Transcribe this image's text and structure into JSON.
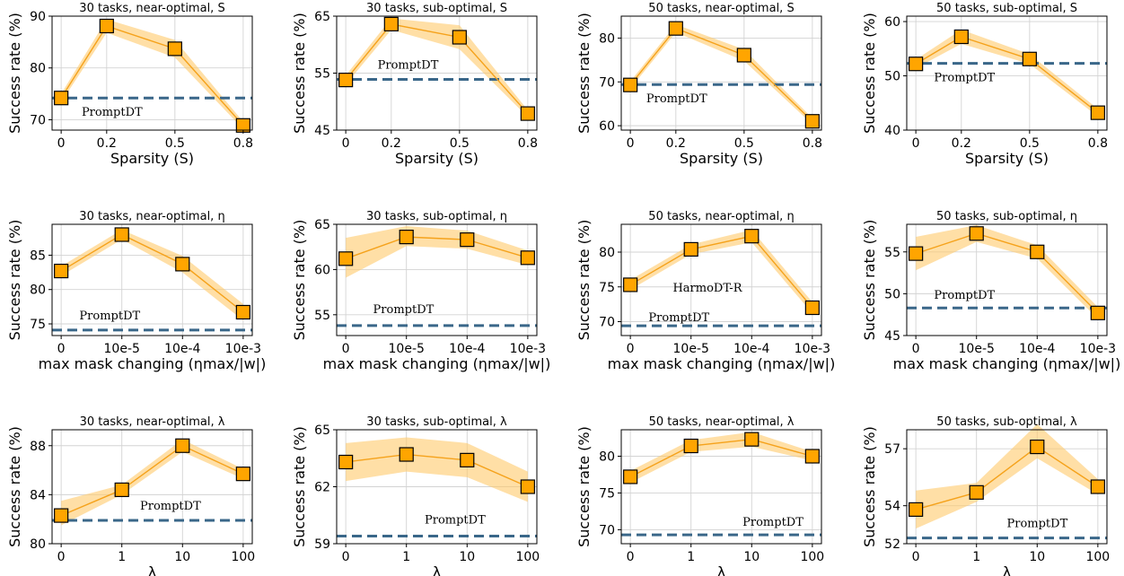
{
  "colors": {
    "marker": "#ffa500",
    "line": "#f5a21b",
    "band": "#ffc96b",
    "baseline": "#3a6789",
    "grid": "#d3d3d3"
  },
  "chart_data": [
    {
      "type": "line",
      "title": "30 tasks, near-optimal, S",
      "xlabel": "Sparsity (S)",
      "ylabel": "Success rate (%)",
      "categories": [
        "0",
        "0.2",
        "0.5",
        "0.8"
      ],
      "x": [
        0,
        0.2,
        0.5,
        0.8
      ],
      "xlim": [
        -0.04,
        0.84
      ],
      "values": [
        74.2,
        88.1,
        83.7,
        68.9
      ],
      "lower": [
        73.4,
        86.8,
        82.0,
        68.2
      ],
      "upper": [
        75.0,
        89.4,
        85.4,
        69.6
      ],
      "yticks": [
        70,
        80,
        90
      ],
      "ylim": [
        68,
        90
      ],
      "baseline": {
        "label": "PromptDT",
        "value": 74.2
      }
    },
    {
      "type": "line",
      "title": "30 tasks, sub-optimal, S",
      "xlabel": "Sparsity (S)",
      "ylabel": "Success rate (%)",
      "categories": [
        "0",
        "0.2",
        "0.5",
        "0.8"
      ],
      "x": [
        0,
        0.2,
        0.5,
        0.8
      ],
      "xlim": [
        -0.04,
        0.84
      ],
      "values": [
        53.8,
        63.6,
        61.3,
        47.9
      ],
      "lower": [
        53.0,
        62.6,
        59.2,
        47.3
      ],
      "upper": [
        54.6,
        64.6,
        63.4,
        48.5
      ],
      "yticks": [
        45,
        55,
        65
      ],
      "ylim": [
        45,
        65
      ],
      "baseline": {
        "label": "PromptDT",
        "value": 53.9
      }
    },
    {
      "type": "line",
      "title": "50 tasks, near-optimal, S",
      "xlabel": "Sparsity (S)",
      "ylabel": "Success rate (%)",
      "categories": [
        "0",
        "0.2",
        "0.5",
        "0.8"
      ],
      "x": [
        0,
        0.2,
        0.5,
        0.8
      ],
      "xlim": [
        -0.04,
        0.84
      ],
      "values": [
        69.3,
        82.2,
        76.1,
        61.0
      ],
      "lower": [
        68.5,
        81.3,
        74.8,
        60.3
      ],
      "upper": [
        70.1,
        83.1,
        77.4,
        61.7
      ],
      "yticks": [
        60,
        70,
        80
      ],
      "ylim": [
        59,
        85
      ],
      "baseline": {
        "label": "PromptDT",
        "value": 69.4
      }
    },
    {
      "type": "line",
      "title": "50 tasks, sub-optimal, S",
      "xlabel": "Sparsity (S)",
      "ylabel": "Success rate (%)",
      "categories": [
        "0",
        "0.2",
        "0.5",
        "0.8"
      ],
      "x": [
        0,
        0.2,
        0.5,
        0.8
      ],
      "xlim": [
        -0.04,
        0.84
      ],
      "values": [
        52.2,
        57.2,
        53.1,
        43.2
      ],
      "lower": [
        51.4,
        55.9,
        52.2,
        42.5
      ],
      "upper": [
        53.0,
        58.5,
        54.0,
        43.9
      ],
      "yticks": [
        40,
        50,
        60
      ],
      "ylim": [
        40,
        61
      ],
      "baseline": {
        "label": "PromptDT",
        "value": 52.3
      }
    },
    {
      "type": "line",
      "title": "30 tasks, near-optimal, η",
      "xlabel": "max mask changing (ηmax/|w|)",
      "ylabel": "Success rate (%)",
      "categories": [
        "0",
        "10e-5",
        "10e-4",
        "10e-3"
      ],
      "x": [
        0,
        1,
        2,
        3
      ],
      "xlim": [
        -0.15,
        3.15
      ],
      "values": [
        82.7,
        88.0,
        83.7,
        76.7
      ],
      "lower": [
        82.0,
        87.3,
        82.5,
        75.5
      ],
      "upper": [
        83.4,
        88.7,
        84.9,
        77.9
      ],
      "yticks": [
        75,
        80,
        85
      ],
      "ylim": [
        73.3,
        89.5
      ],
      "baseline": {
        "label": "PromptDT",
        "value": 74.1
      }
    },
    {
      "type": "line",
      "title": "30 tasks, sub-optimal, η",
      "xlabel": "max mask changing (ηmax/|w|)",
      "ylabel": "Success rate (%)",
      "categories": [
        "0",
        "10e-5",
        "10e-4",
        "10e-3"
      ],
      "x": [
        0,
        1,
        2,
        3
      ],
      "xlim": [
        -0.15,
        3.15
      ],
      "values": [
        61.2,
        63.6,
        63.3,
        61.3
      ],
      "lower": [
        59.1,
        62.6,
        62.3,
        60.5
      ],
      "upper": [
        63.5,
        64.8,
        64.3,
        62.1
      ],
      "yticks": [
        55,
        60,
        65
      ],
      "ylim": [
        52.7,
        65
      ],
      "baseline": {
        "label": "PromptDT",
        "value": 53.8
      }
    },
    {
      "type": "line",
      "title": "50 tasks, near-optimal, η",
      "xlabel": "max mask changing (ηmax/|w|)",
      "ylabel": "Success rate (%)",
      "categories": [
        "0",
        "10e-5",
        "10e-4",
        "10e-3"
      ],
      "x": [
        0,
        1,
        2,
        3
      ],
      "xlim": [
        -0.15,
        3.15
      ],
      "values": [
        75.3,
        80.4,
        82.3,
        72.0
      ],
      "lower": [
        74.6,
        79.7,
        81.4,
        71.2
      ],
      "upper": [
        76.0,
        81.1,
        83.2,
        72.8
      ],
      "yticks": [
        70,
        75,
        80
      ],
      "ylim": [
        68,
        84
      ],
      "baseline": {
        "label": "PromptDT",
        "value": 69.4
      },
      "annotation": {
        "text": "HarmoDT-R",
        "x": 0.7,
        "y": 74.3
      }
    },
    {
      "type": "line",
      "title": "50 tasks, sub-optimal, η",
      "xlabel": "max mask changing (ηmax/|w|)",
      "ylabel": "Success rate (%)",
      "categories": [
        "0",
        "10e-5",
        "10e-4",
        "10e-3"
      ],
      "x": [
        0,
        1,
        2,
        3
      ],
      "xlim": [
        -0.15,
        3.15
      ],
      "values": [
        54.8,
        57.2,
        55.0,
        47.7
      ],
      "lower": [
        52.8,
        56.2,
        54.2,
        47.0
      ],
      "upper": [
        56.8,
        58.2,
        55.8,
        48.4
      ],
      "yticks": [
        45,
        50,
        55
      ],
      "ylim": [
        45,
        58.3
      ],
      "baseline": {
        "label": "PromptDT",
        "value": 48.3
      }
    },
    {
      "type": "line",
      "title": "30 tasks, near-optimal, λ",
      "xlabel": "λ",
      "ylabel": "Success rate (%)",
      "categories": [
        "0",
        "1",
        "10",
        "100"
      ],
      "x": [
        0,
        1,
        2,
        3
      ],
      "xlim": [
        -0.15,
        3.15
      ],
      "values": [
        82.3,
        84.4,
        88.0,
        85.7
      ],
      "lower": [
        81.5,
        84.0,
        87.5,
        85.3
      ],
      "upper": [
        83.5,
        84.8,
        88.5,
        86.1
      ],
      "yticks": [
        80,
        84,
        88
      ],
      "ylim": [
        80,
        89.3
      ],
      "baseline": {
        "label": "PromptDT",
        "value": 81.9
      }
    },
    {
      "type": "line",
      "title": "30 tasks, sub-optimal, λ",
      "xlabel": "λ",
      "ylabel": "Success rate (%)",
      "categories": [
        "0",
        "1",
        "10",
        "100"
      ],
      "x": [
        0,
        1,
        2,
        3
      ],
      "xlim": [
        -0.15,
        3.15
      ],
      "values": [
        63.3,
        63.7,
        63.4,
        62.0
      ],
      "lower": [
        62.3,
        62.8,
        62.5,
        61.2
      ],
      "upper": [
        64.3,
        64.6,
        64.3,
        62.8
      ],
      "yticks": [
        59,
        62,
        65
      ],
      "ylim": [
        59,
        65
      ],
      "baseline": {
        "label": "PromptDT",
        "value": 59.4
      }
    },
    {
      "type": "line",
      "title": "50 tasks, near-optimal, λ",
      "xlabel": "λ",
      "ylabel": "Success rate (%)",
      "categories": [
        "0",
        "1",
        "10",
        "100"
      ],
      "x": [
        0,
        1,
        2,
        3
      ],
      "xlim": [
        -0.15,
        3.15
      ],
      "values": [
        77.2,
        81.4,
        82.3,
        80.0
      ],
      "lower": [
        76.4,
        80.6,
        81.3,
        79.4
      ],
      "upper": [
        78.0,
        82.2,
        83.3,
        80.6
      ],
      "yticks": [
        70,
        75,
        80
      ],
      "ylim": [
        68.1,
        83.6
      ],
      "baseline": {
        "label": "PromptDT",
        "value": 69.3
      }
    },
    {
      "type": "line",
      "title": "50 tasks, sub-optimal, λ",
      "xlabel": "λ",
      "ylabel": "Success rate (%)",
      "categories": [
        "0",
        "1",
        "10",
        "100"
      ],
      "x": [
        0,
        1,
        2,
        3
      ],
      "xlim": [
        -0.15,
        3.15
      ],
      "values": [
        53.8,
        54.7,
        57.1,
        55.0
      ],
      "lower": [
        52.8,
        54.2,
        56.5,
        54.6
      ],
      "upper": [
        54.8,
        55.2,
        58.3,
        55.4
      ],
      "yticks": [
        52,
        54,
        57
      ],
      "ylim": [
        52,
        58
      ],
      "baseline": {
        "label": "PromptDT",
        "value": 52.3
      }
    }
  ]
}
